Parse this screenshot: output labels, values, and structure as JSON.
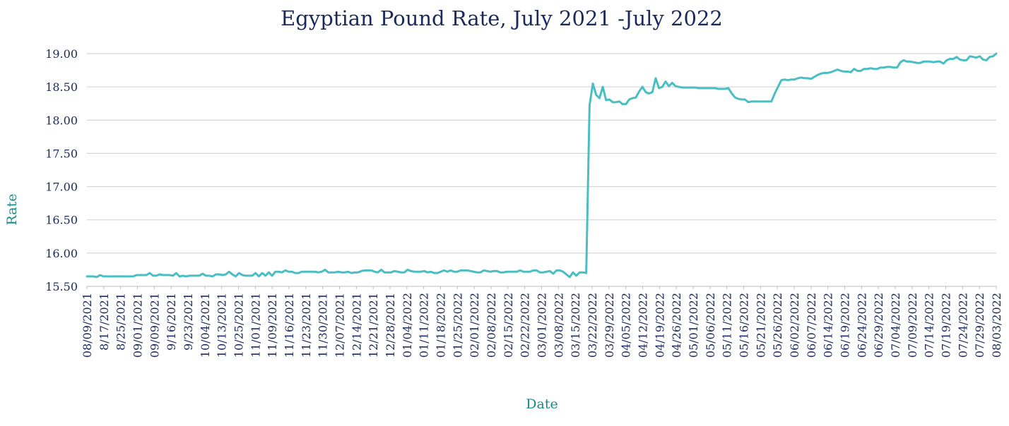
{
  "colors": {
    "title": "#1b2a5e",
    "tick_text": "#1b2a5e",
    "axis_label": "#1a8a8a",
    "line": "#4bbec3",
    "grid": "#cfcfcf",
    "axis": "#bdbdbd"
  },
  "chart_data": {
    "type": "line",
    "title": "Egyptian Pound Rate, July 2021 -July 2022",
    "xlabel": "Date",
    "ylabel": "Rate",
    "ylim": [
      15.5,
      19.0
    ],
    "yticks": [
      "15.50",
      "16.00",
      "16.50",
      "17.00",
      "17.50",
      "18.00",
      "18.50",
      "19.00"
    ],
    "grid": "horizontal",
    "legend": "none",
    "xtick_labels": [
      "08/09/2021",
      "8/17/2021",
      "8/25/2021",
      "09/01/2021",
      "09/09/2021",
      "9/16/2021",
      "9/23/2021",
      "10/04/2021",
      "10/13/2021",
      "10/25/2021",
      "11/01/2021",
      "11/09/2021",
      "11/16/2021",
      "11/23/2021",
      "11/30/2021",
      "12/07/2021",
      "12/14/2021",
      "12/21/2021",
      "12/28/2021",
      "01/04/2022",
      "01/11/2022",
      "01/18/2022",
      "01/25/2022",
      "02/01/2022",
      "02/08/2022",
      "02/15/2022",
      "02/22/2022",
      "03/01/2022",
      "03/08/2022",
      "03/15/2022",
      "03/22/2022",
      "03/29/2022",
      "04/05/2022",
      "04/12/2022",
      "04/19/2022",
      "04/26/2022",
      "05/01/2022",
      "05/06/2022",
      "05/11/2022",
      "05/16/2022",
      "05/21/2022",
      "05/26/2022",
      "06/02/2022",
      "06/07/2022",
      "06/14/2022",
      "06/19/2022",
      "06/24/2022",
      "06/29/2022",
      "07/04/2022",
      "07/09/2022",
      "07/14/2022",
      "07/19/2022",
      "07/24/2022",
      "07/29/2022",
      "08/03/2022"
    ],
    "series": [
      {
        "values": [
          15.65,
          15.65,
          15.65,
          15.64,
          15.67,
          15.65,
          15.65,
          15.65,
          15.65,
          15.65,
          15.65,
          15.65,
          15.65,
          15.65,
          15.65,
          15.67,
          15.67,
          15.67,
          15.67,
          15.7,
          15.66,
          15.66,
          15.68,
          15.67,
          15.67,
          15.67,
          15.66,
          15.7,
          15.65,
          15.66,
          15.65,
          15.66,
          15.66,
          15.66,
          15.66,
          15.69,
          15.66,
          15.66,
          15.65,
          15.68,
          15.68,
          15.67,
          15.68,
          15.72,
          15.68,
          15.65,
          15.7,
          15.67,
          15.66,
          15.66,
          15.66,
          15.7,
          15.65,
          15.7,
          15.66,
          15.71,
          15.66,
          15.72,
          15.72,
          15.71,
          15.74,
          15.72,
          15.72,
          15.7,
          15.7,
          15.72,
          15.72,
          15.72,
          15.72,
          15.72,
          15.71,
          15.72,
          15.75,
          15.71,
          15.71,
          15.71,
          15.72,
          15.71,
          15.71,
          15.72,
          15.7,
          15.71,
          15.71,
          15.73,
          15.74,
          15.74,
          15.74,
          15.72,
          15.71,
          15.75,
          15.71,
          15.71,
          15.71,
          15.73,
          15.72,
          15.71,
          15.71,
          15.75,
          15.73,
          15.72,
          15.72,
          15.72,
          15.73,
          15.71,
          15.72,
          15.7,
          15.7,
          15.72,
          15.74,
          15.72,
          15.74,
          15.72,
          15.72,
          15.74,
          15.74,
          15.74,
          15.73,
          15.72,
          15.71,
          15.71,
          15.74,
          15.73,
          15.72,
          15.73,
          15.73,
          15.71,
          15.71,
          15.72,
          15.72,
          15.72,
          15.72,
          15.74,
          15.72,
          15.72,
          15.72,
          15.74,
          15.74,
          15.71,
          15.71,
          15.72,
          15.73,
          15.69,
          15.74,
          15.74,
          15.72,
          15.68,
          15.64,
          15.71,
          15.66,
          15.71,
          15.71,
          15.7,
          18.22,
          18.55,
          18.38,
          18.33,
          18.5,
          18.3,
          18.31,
          18.27,
          18.27,
          18.28,
          18.24,
          18.24,
          18.31,
          18.33,
          18.34,
          18.43,
          18.5,
          18.42,
          18.4,
          18.42,
          18.63,
          18.48,
          18.5,
          18.58,
          18.51,
          18.56,
          18.51,
          18.5,
          18.49,
          18.49,
          18.49,
          18.49,
          18.49,
          18.48,
          18.48,
          18.48,
          18.48,
          18.48,
          18.48,
          18.47,
          18.47,
          18.47,
          18.48,
          18.4,
          18.34,
          18.32,
          18.31,
          18.31,
          18.27,
          18.28,
          18.28,
          18.28,
          18.28,
          18.28,
          18.28,
          18.28,
          18.4,
          18.5,
          18.6,
          18.61,
          18.6,
          18.61,
          18.61,
          18.63,
          18.64,
          18.63,
          18.63,
          18.62,
          18.65,
          18.68,
          18.7,
          18.71,
          18.71,
          18.72,
          18.74,
          18.76,
          18.74,
          18.73,
          18.73,
          18.72,
          18.77,
          18.74,
          18.74,
          18.77,
          18.77,
          18.78,
          18.77,
          18.77,
          18.79,
          18.79,
          18.8,
          18.8,
          18.79,
          18.79,
          18.87,
          18.9,
          18.88,
          18.88,
          18.87,
          18.86,
          18.86,
          18.88,
          18.88,
          18.88,
          18.87,
          18.88,
          18.88,
          18.85,
          18.9,
          18.92,
          18.92,
          18.95,
          18.91,
          18.9,
          18.9,
          18.96,
          18.95,
          18.94,
          18.96,
          18.91,
          18.9,
          18.95,
          18.96,
          19.0
        ]
      }
    ]
  }
}
